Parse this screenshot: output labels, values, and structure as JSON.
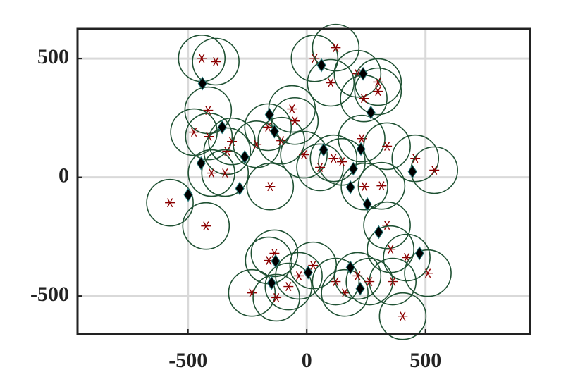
{
  "chart_data": {
    "type": "scatter",
    "xlim": [
      -965,
      940
    ],
    "ylim": [
      -660,
      625
    ],
    "xticks": [
      -500,
      0,
      500
    ],
    "yticks": [
      -500,
      0,
      500
    ],
    "grid": true,
    "series": [
      {
        "marker": "ringed-asterisk",
        "color": "#8b0000",
        "ring_color": "#1f5133",
        "x": [
          -442,
          -383,
          -415,
          -475,
          -412,
          -315,
          -335,
          -401,
          -344,
          -576,
          -424,
          -154,
          -211,
          -163,
          -107,
          -62,
          -50,
          -12,
          56,
          113,
          148,
          33,
          122,
          101,
          214,
          300,
          240,
          300,
          231,
          338,
          243,
          315,
          457,
          537,
          338,
          353,
          421,
          510,
          362,
          404,
          -136,
          -160,
          -231,
          -128,
          -77,
          -33,
          27,
          122,
          160,
          214,
          264
        ],
        "y": [
          501,
          487,
          282,
          190,
          172,
          151,
          110,
          18,
          18,
          -107,
          -205,
          -39,
          139,
          211,
          154,
          288,
          237,
          95,
          42,
          80,
          65,
          501,
          546,
          398,
          436,
          401,
          332,
          362,
          163,
          131,
          -39,
          -36,
          80,
          30,
          -202,
          -303,
          -338,
          -404,
          -439,
          -585,
          -320,
          -350,
          -487,
          -507,
          -460,
          -415,
          -371,
          -439,
          -487,
          -415,
          -439
        ]
      },
      {
        "marker": "diamond",
        "color": "#000000",
        "edge_color": "#2a7f7f",
        "x": [
          -439,
          -356,
          -445,
          -261,
          -282,
          -499,
          -157,
          -136,
          71,
          196,
          228,
          184,
          255,
          62,
          237,
          270,
          445,
          303,
          475,
          -131,
          -148,
          6,
          184,
          225
        ],
        "y": [
          395,
          211,
          59,
          86,
          -47,
          -74,
          264,
          193,
          116,
          36,
          119,
          -42,
          -113,
          472,
          436,
          273,
          24,
          -231,
          -320,
          -353,
          -445,
          -401,
          -380,
          -469
        ]
      }
    ]
  }
}
